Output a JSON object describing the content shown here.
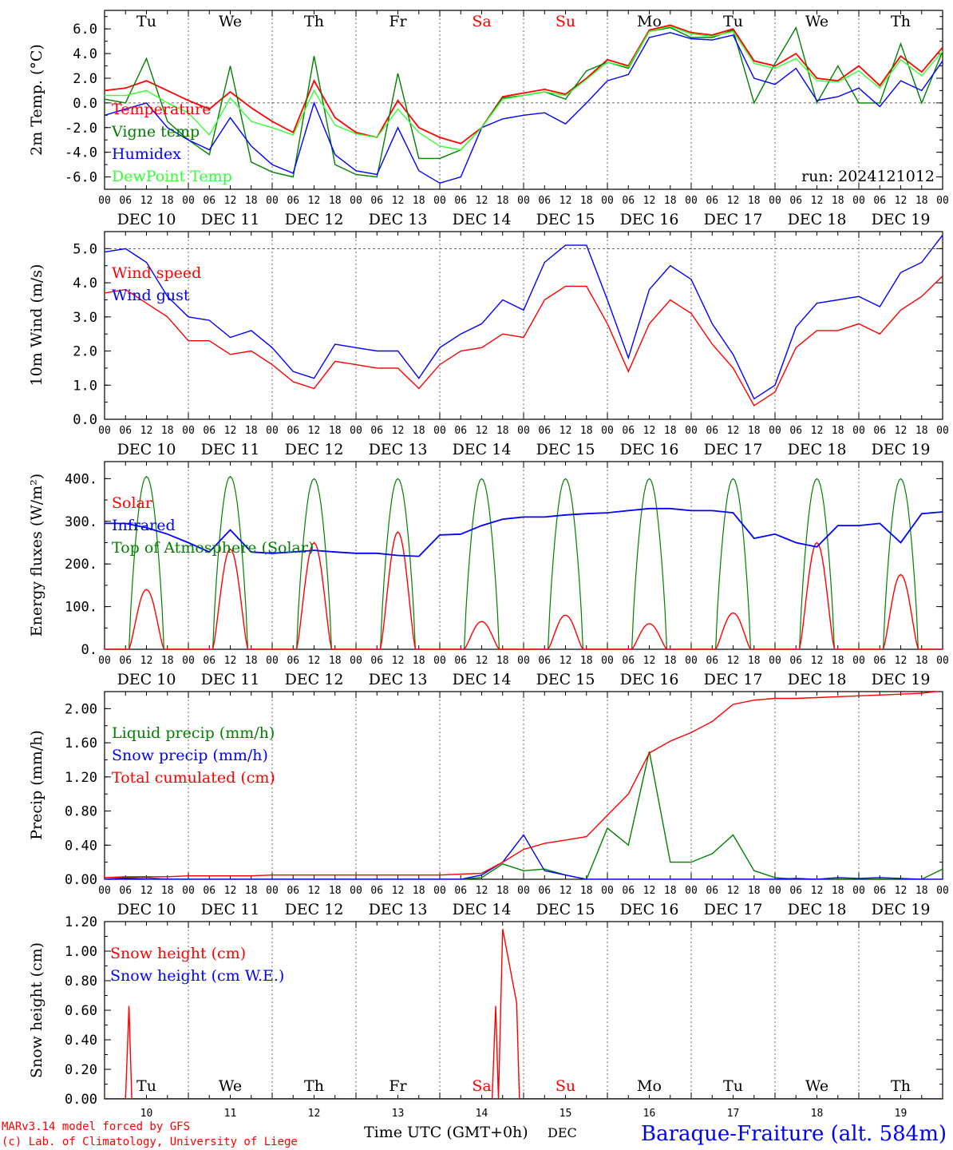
{
  "colors": {
    "red": "#ff0000",
    "green": "#008000",
    "blue": "#0000ff",
    "lightgreen": "#33ff33",
    "black": "#000000",
    "saturday": "#ff0000",
    "sunday": "#ff0000",
    "station": "#0000ff"
  },
  "days": [
    "DEC 10",
    "DEC 11",
    "DEC 12",
    "DEC 13",
    "DEC 14",
    "DEC 15",
    "DEC 16",
    "DEC 17",
    "DEC 18",
    "DEC 19"
  ],
  "weekdays": [
    "Tu",
    "We",
    "Th",
    "Fr",
    "Sa",
    "Su",
    "Mo",
    "Tu",
    "We",
    "Th"
  ],
  "hour_ticks": [
    "00",
    "06",
    "12",
    "18"
  ],
  "day_numbers": [
    "10",
    "11",
    "12",
    "13",
    "14",
    "15",
    "16",
    "17",
    "18",
    "19"
  ],
  "footer": {
    "model": "MARv3.14 model forced by GFS",
    "lab": "(c) Lab. of Climatology, University of Liege",
    "time_label": "Time UTC (GMT+0h)",
    "month": "DEC",
    "station": "Baraque-Fraiture (alt. 584m)"
  },
  "chart_data": [
    {
      "type": "line",
      "ylabel": "2m Temp. (°C)",
      "ylim": [
        -7.0,
        7.5
      ],
      "yticks": [
        "6.0",
        "4.0",
        "2.0",
        "0.0",
        "-2.0",
        "-4.0",
        "-6.0"
      ],
      "reference_line": 0.0,
      "annotation": "run: 2024121012",
      "show_weekdays": true,
      "legend": [
        "Temperature",
        "Vigne temp",
        "Humidex",
        "DewPoint Temp"
      ],
      "x_hours": [
        0,
        6,
        12,
        18,
        24,
        30,
        36,
        42,
        48,
        54,
        60,
        66,
        72,
        78,
        84,
        90,
        96,
        102,
        108,
        114,
        120,
        126,
        132,
        138,
        144,
        150,
        156,
        162,
        168,
        174,
        180,
        186,
        192,
        198,
        204,
        210,
        216,
        222,
        228,
        234,
        240
      ],
      "series": [
        {
          "name": "Temperature",
          "color": "red",
          "values": [
            1.0,
            1.2,
            1.8,
            1.0,
            0.2,
            -0.5,
            0.9,
            -0.4,
            -1.5,
            -2.4,
            1.8,
            -1.2,
            -2.4,
            -2.8,
            0.2,
            -2.0,
            -2.8,
            -3.3,
            -2.0,
            0.5,
            0.8,
            1.1,
            0.7,
            2.0,
            3.5,
            3.0,
            5.9,
            6.3,
            5.7,
            5.5,
            6.0,
            3.4,
            3.0,
            4.0,
            2.0,
            1.8,
            3.0,
            1.4,
            3.8,
            2.5,
            4.5
          ]
        },
        {
          "name": "Vigne temp",
          "color": "green",
          "values": [
            0.3,
            0.0,
            3.6,
            -1.5,
            -3.0,
            -4.2,
            3.0,
            -4.8,
            -5.6,
            -6.0,
            3.8,
            -5.0,
            -5.8,
            -6.0,
            2.4,
            -4.5,
            -4.5,
            -3.8,
            -2.0,
            0.4,
            0.6,
            0.9,
            0.3,
            2.6,
            3.3,
            2.8,
            5.8,
            6.1,
            5.3,
            5.3,
            5.9,
            0.0,
            3.2,
            6.1,
            0.0,
            3.0,
            0.0,
            0.0,
            4.8,
            0.0,
            4.2
          ]
        },
        {
          "name": "Humidex",
          "color": "blue",
          "values": [
            -1.0,
            -0.5,
            0.0,
            -2.0,
            -3.0,
            -3.8,
            -1.2,
            -3.5,
            -5.0,
            -5.7,
            0.0,
            -4.2,
            -5.5,
            -5.8,
            -2.0,
            -5.5,
            -6.5,
            -6.0,
            -2.0,
            -1.3,
            -1.0,
            -0.8,
            -1.7,
            0.0,
            1.8,
            2.3,
            5.3,
            5.7,
            5.2,
            5.1,
            5.5,
            2.0,
            1.5,
            2.8,
            0.2,
            0.5,
            1.2,
            -0.3,
            1.8,
            1.0,
            3.4
          ]
        },
        {
          "name": "DewPoint Temp",
          "color": "lightgreen",
          "values": [
            0.6,
            0.6,
            1.0,
            0.0,
            -0.8,
            -2.6,
            0.4,
            -1.5,
            -2.0,
            -2.6,
            1.0,
            -1.8,
            -2.5,
            -2.8,
            -0.5,
            -2.4,
            -3.5,
            -3.8,
            -2.0,
            0.3,
            0.6,
            0.9,
            0.6,
            1.9,
            3.3,
            2.9,
            5.8,
            6.2,
            5.6,
            5.4,
            5.8,
            3.2,
            2.8,
            3.6,
            1.8,
            1.7,
            2.6,
            1.2,
            3.5,
            2.2,
            4.2
          ]
        }
      ]
    },
    {
      "type": "line",
      "ylabel": "10m Wind (m/s)",
      "ylim": [
        0.0,
        5.5
      ],
      "yticks": [
        "5.0",
        "4.0",
        "3.0",
        "2.0",
        "1.0",
        "0.0"
      ],
      "reference_line": 5.0,
      "legend": [
        "Wind speed",
        "Wind gust"
      ],
      "x_hours": [
        0,
        6,
        12,
        18,
        24,
        30,
        36,
        42,
        48,
        54,
        60,
        66,
        72,
        78,
        84,
        90,
        96,
        102,
        108,
        114,
        120,
        126,
        132,
        138,
        144,
        150,
        156,
        162,
        168,
        174,
        180,
        186,
        192,
        198,
        204,
        210,
        216,
        222,
        228,
        234,
        240
      ],
      "series": [
        {
          "name": "Wind speed",
          "color": "red",
          "values": [
            3.7,
            3.8,
            3.4,
            3.0,
            2.3,
            2.3,
            1.9,
            2.0,
            1.6,
            1.1,
            0.9,
            1.7,
            1.6,
            1.5,
            1.5,
            0.9,
            1.6,
            2.0,
            2.1,
            2.5,
            2.4,
            3.5,
            3.9,
            3.9,
            2.8,
            1.4,
            2.8,
            3.5,
            3.1,
            2.2,
            1.5,
            0.4,
            0.8,
            2.1,
            2.6,
            2.6,
            2.8,
            2.5,
            3.2,
            3.6,
            4.2
          ]
        },
        {
          "name": "Wind gust",
          "color": "blue",
          "values": [
            4.9,
            5.0,
            4.6,
            3.6,
            3.0,
            2.9,
            2.4,
            2.6,
            2.1,
            1.4,
            1.2,
            2.2,
            2.1,
            2.0,
            2.0,
            1.2,
            2.1,
            2.5,
            2.8,
            3.5,
            3.2,
            4.6,
            5.1,
            5.1,
            3.5,
            1.8,
            3.8,
            4.5,
            4.1,
            2.8,
            1.9,
            0.6,
            1.0,
            2.7,
            3.4,
            3.5,
            3.6,
            3.3,
            4.3,
            4.6,
            5.4
          ]
        }
      ]
    },
    {
      "type": "line",
      "ylabel": "Energy fluxes (W/m²)",
      "ylim": [
        0,
        440
      ],
      "yticks": [
        "400.",
        "300.",
        "200.",
        "100.",
        "0."
      ],
      "legend": [
        "Solar",
        "Infrared",
        "Top of Atmosphere (Solar)"
      ],
      "peak_hour": 12,
      "toa_peak": [
        405,
        405,
        400,
        400,
        400,
        400,
        400,
        400,
        400,
        400
      ],
      "solar_peak": [
        140,
        235,
        250,
        275,
        65,
        80,
        60,
        85,
        250,
        175
      ],
      "x_hours": [
        0,
        6,
        12,
        18,
        24,
        30,
        36,
        42,
        48,
        54,
        60,
        66,
        72,
        78,
        84,
        90,
        96,
        102,
        108,
        114,
        120,
        126,
        132,
        138,
        144,
        150,
        156,
        162,
        168,
        174,
        180,
        186,
        192,
        198,
        204,
        210,
        216,
        222,
        228,
        234,
        240
      ],
      "series": [
        {
          "name": "Infrared",
          "color": "blue",
          "values": [
            295,
            295,
            285,
            270,
            250,
            228,
            280,
            228,
            225,
            228,
            232,
            228,
            225,
            225,
            220,
            218,
            268,
            270,
            290,
            305,
            310,
            310,
            315,
            318,
            320,
            325,
            330,
            330,
            325,
            325,
            320,
            260,
            270,
            250,
            240,
            290,
            290,
            295,
            250,
            318,
            322
          ]
        }
      ]
    },
    {
      "type": "line",
      "ylabel": "Precip (mm/h)",
      "ylim": [
        0.0,
        2.2
      ],
      "yticks": [
        "2.00",
        "1.60",
        "1.20",
        "0.80",
        "0.40",
        "0.00"
      ],
      "legend": [
        "Liquid precip (mm/h)",
        "Snow precip (mm/h)",
        "Total cumulated (cm)"
      ],
      "x_hours": [
        0,
        6,
        12,
        18,
        24,
        30,
        36,
        42,
        48,
        54,
        60,
        66,
        72,
        78,
        84,
        90,
        96,
        102,
        108,
        114,
        120,
        126,
        132,
        138,
        144,
        150,
        156,
        162,
        168,
        174,
        180,
        186,
        192,
        198,
        204,
        210,
        216,
        222,
        228,
        234,
        240
      ],
      "series": [
        {
          "name": "Liquid precip (mm/h)",
          "color": "green",
          "values": [
            0.02,
            0.02,
            0.02,
            0.0,
            0.0,
            0.0,
            0.0,
            0.0,
            0.0,
            0.0,
            0.0,
            0.0,
            0.0,
            0.0,
            0.0,
            0.0,
            0.0,
            0.0,
            0.02,
            0.18,
            0.1,
            0.12,
            0.05,
            0.0,
            0.6,
            0.4,
            1.5,
            0.2,
            0.2,
            0.3,
            0.52,
            0.1,
            0.02,
            0.0,
            0.0,
            0.0,
            0.0,
            0.0,
            0.0,
            0.0,
            0.12
          ]
        },
        {
          "name": "Snow precip (mm/h)",
          "color": "blue",
          "values": [
            0.0,
            0.01,
            0.0,
            0.0,
            0.0,
            0.0,
            0.0,
            0.0,
            0.0,
            0.0,
            0.0,
            0.0,
            0.0,
            0.0,
            0.0,
            0.0,
            0.0,
            0.0,
            0.05,
            0.2,
            0.52,
            0.1,
            0.05,
            0.0,
            0.0,
            0.0,
            0.0,
            0.0,
            0.0,
            0.0,
            0.0,
            0.0,
            0.0,
            0.01,
            0.0,
            0.02,
            0.01,
            0.02,
            0.01,
            0.0,
            0.0
          ]
        },
        {
          "name": "Total cumulated (cm)",
          "color": "red",
          "values": [
            0.02,
            0.03,
            0.03,
            0.03,
            0.04,
            0.04,
            0.04,
            0.04,
            0.05,
            0.05,
            0.05,
            0.05,
            0.05,
            0.05,
            0.05,
            0.05,
            0.05,
            0.06,
            0.07,
            0.2,
            0.35,
            0.42,
            0.46,
            0.5,
            0.75,
            1.0,
            1.48,
            1.62,
            1.72,
            1.85,
            2.05,
            2.1,
            2.12,
            2.12,
            2.13,
            2.14,
            2.15,
            2.16,
            2.17,
            2.18,
            2.21
          ]
        }
      ]
    },
    {
      "type": "line",
      "ylabel": "Snow height (cm)",
      "ylim": [
        0.0,
        1.2
      ],
      "yticks": [
        "1.20",
        "1.00",
        "0.80",
        "0.60",
        "0.40",
        "0.20",
        "0.00"
      ],
      "legend": [
        "Snow height (cm)",
        "Snow height (cm W.E.)"
      ],
      "show_weekdays": true,
      "series": [
        {
          "name": "Snow height (cm)",
          "color": "red",
          "points": [
            [
              0,
              0
            ],
            [
              6,
              0
            ],
            [
              7,
              0.63
            ],
            [
              7.8,
              0
            ],
            [
              110,
              0
            ],
            [
              111,
              0
            ],
            [
              112,
              0.63
            ],
            [
              112.8,
              0
            ],
            [
              114,
              1.15
            ],
            [
              118,
              0.65
            ],
            [
              118.8,
              0
            ],
            [
              240,
              0
            ]
          ]
        },
        {
          "name": "Snow height (cm W.E.)",
          "color": "blue",
          "points": [
            [
              0,
              0
            ],
            [
              240,
              0
            ]
          ]
        }
      ]
    }
  ]
}
